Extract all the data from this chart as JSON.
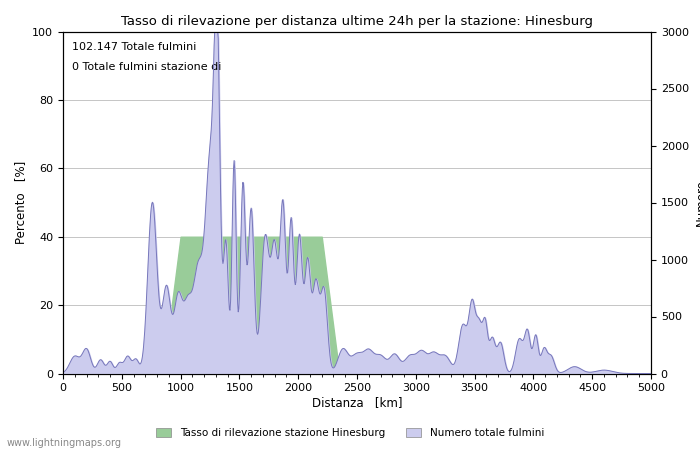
{
  "title": "Tasso di rilevazione per distanza ultime 24h per la stazione: Hinesburg",
  "xlabel": "Distanza   [km]",
  "ylabel_left": "Percento   [%]",
  "ylabel_right": "Numero",
  "annotation_line1": "102.147 Totale fulmini",
  "annotation_line2": "0 Totale fulmini stazione di",
  "xlim": [
    0,
    5000
  ],
  "ylim_left": [
    0,
    100
  ],
  "ylim_right": [
    0,
    3000
  ],
  "xticks": [
    0,
    500,
    1000,
    1500,
    2000,
    2500,
    3000,
    3500,
    4000,
    4500,
    5000
  ],
  "yticks_left": [
    0,
    20,
    40,
    60,
    80,
    100
  ],
  "yticks_right": [
    0,
    500,
    1000,
    1500,
    2000,
    2500,
    3000
  ],
  "line_color": "#7777bb",
  "fill_blue_color": "#ccccee",
  "fill_green_color": "#99cc99",
  "legend_label_green": "Tasso di rilevazione stazione Hinesburg",
  "legend_label_blue": "Numero totale fulmini",
  "watermark": "www.lightningmaps.org",
  "bg_color": "#ffffff",
  "grid_color": "#bbbbbb"
}
